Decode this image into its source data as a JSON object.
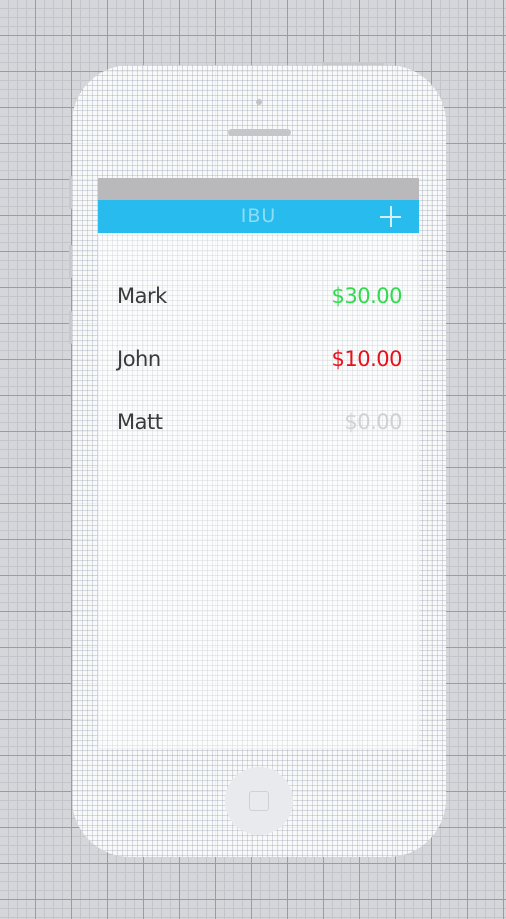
{
  "nav": {
    "title": "IBU",
    "add_icon": "plus-icon",
    "bar_color": "#27bced"
  },
  "people": [
    {
      "name": "Mark",
      "amount": "$30.00",
      "status": "positive",
      "color": "#2edc4a"
    },
    {
      "name": "John",
      "amount": "$10.00",
      "status": "negative",
      "color": "#e8101a"
    },
    {
      "name": "Matt",
      "amount": "$0.00",
      "status": "zero",
      "color": "#cfd1d4"
    }
  ],
  "device": {
    "home_icon": "home-button-icon"
  }
}
